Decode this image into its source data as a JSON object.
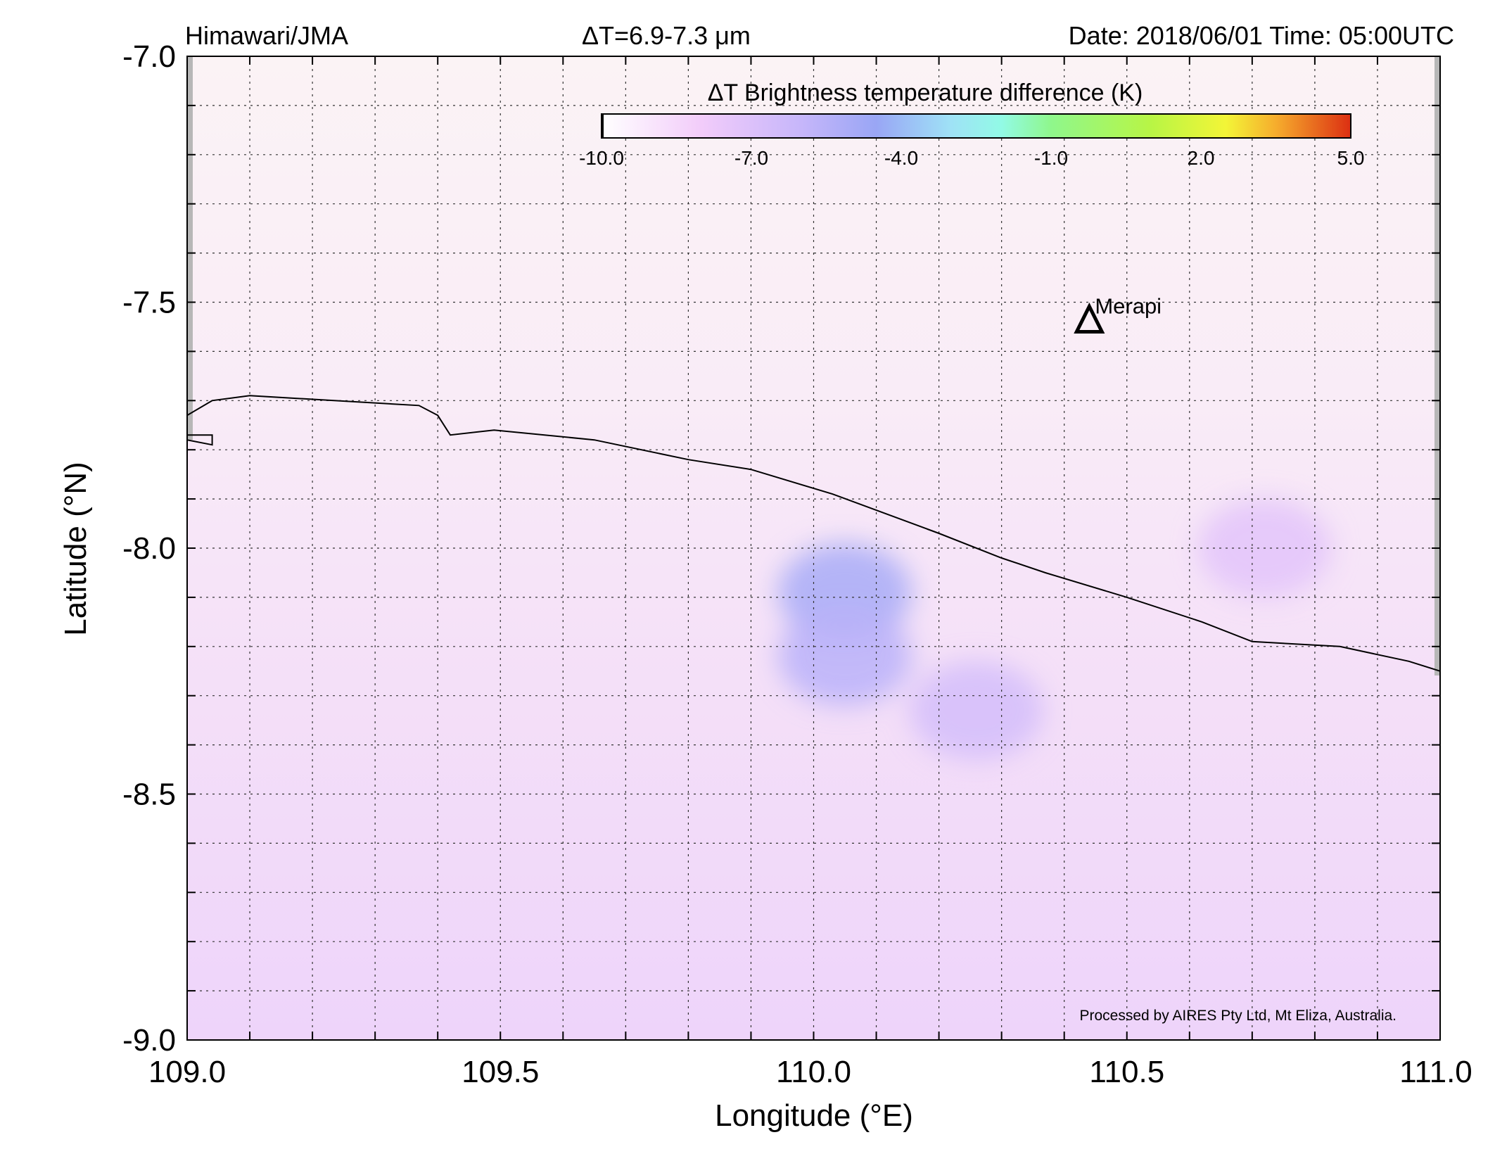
{
  "header": {
    "source": "Himawari/JMA",
    "band": "ΔT=6.9-7.3 μm",
    "datetime": "Date: 2018/06/01 Time: 05:00UTC"
  },
  "colorbar": {
    "title": "ΔT Brightness temperature difference (K)",
    "tick_labels": [
      "-10.0",
      "-7.0",
      "-4.0",
      "-1.0",
      "2.0",
      "5.0"
    ],
    "range": [
      -10,
      5
    ],
    "stops": [
      {
        "value": -10,
        "color": "#ffffff"
      },
      {
        "value": -8,
        "color": "#f2ccfa"
      },
      {
        "value": -6,
        "color": "#c6b6fa"
      },
      {
        "value": -4.5,
        "color": "#99a6f5"
      },
      {
        "value": -3,
        "color": "#9fe2f6"
      },
      {
        "value": -2,
        "color": "#92fae6"
      },
      {
        "value": -1,
        "color": "#8ff78c"
      },
      {
        "value": 1,
        "color": "#b8f545"
      },
      {
        "value": 2.5,
        "color": "#f3f537"
      },
      {
        "value": 3.5,
        "color": "#f6ad2d"
      },
      {
        "value": 5,
        "color": "#dc2f12"
      }
    ]
  },
  "axes": {
    "xlabel": "Longitude (°E)",
    "ylabel": "Latitude (°N)",
    "xlim": [
      109.0,
      111.0
    ],
    "ylim": [
      -9.0,
      -7.0
    ],
    "x_tick_labels": [
      "109.0",
      "109.5",
      "110.0",
      "110.5",
      "111.0"
    ],
    "y_tick_labels": [
      "-7.0",
      "-7.5",
      "-8.0",
      "-8.5",
      "-9.0"
    ],
    "grid": true
  },
  "features": {
    "volcano": {
      "name": "Merapi",
      "lon": 110.44,
      "lat": -7.54
    },
    "coastline": [
      [
        109.0,
        -7.73
      ],
      [
        109.04,
        -7.7
      ],
      [
        109.1,
        -7.69
      ],
      [
        109.37,
        -7.71
      ],
      [
        109.4,
        -7.73
      ],
      [
        109.42,
        -7.77
      ],
      [
        109.49,
        -7.76
      ],
      [
        109.65,
        -7.78
      ],
      [
        109.8,
        -7.82
      ],
      [
        109.9,
        -7.84
      ],
      [
        110.03,
        -7.89
      ],
      [
        110.2,
        -7.97
      ],
      [
        110.3,
        -8.02
      ],
      [
        110.37,
        -8.05
      ],
      [
        110.5,
        -8.1
      ],
      [
        110.62,
        -8.15
      ],
      [
        110.7,
        -8.19
      ],
      [
        110.84,
        -8.2
      ],
      [
        110.95,
        -8.23
      ],
      [
        111.0,
        -8.25
      ]
    ],
    "islet": [
      [
        109.0,
        -7.77
      ],
      [
        109.04,
        -7.77
      ],
      [
        109.04,
        -7.79
      ],
      [
        109.0,
        -7.78
      ]
    ],
    "anomalies": [
      {
        "lon": 110.05,
        "lat": -8.09,
        "dt": -5.0
      },
      {
        "lon": 110.05,
        "lat": -8.22,
        "dt": -5.6
      },
      {
        "lon": 110.26,
        "lat": -8.33,
        "dt": -6.6
      },
      {
        "lon": 110.72,
        "lat": -8.0,
        "dt": -7.3
      }
    ]
  },
  "credit": "Processed by AIRES Pty Ltd, Mt Eliza, Australia."
}
